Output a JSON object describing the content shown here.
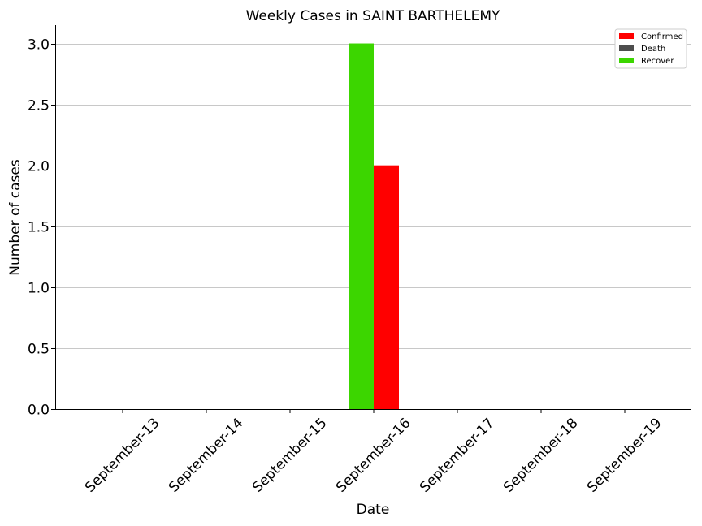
{
  "chart_data": {
    "type": "bar",
    "title": "Weekly Cases in SAINT BARTHELEMY",
    "xlabel": "Date",
    "ylabel": "Number of cases",
    "categories": [
      "September-13",
      "September-14",
      "September-15",
      "September-16",
      "September-17",
      "September-18",
      "September-19"
    ],
    "series": [
      {
        "name": "Confirmed",
        "color": "#ff0000",
        "values": [
          0,
          0,
          0,
          2,
          0,
          0,
          0
        ]
      },
      {
        "name": "Death",
        "color": "#4d4d4d",
        "values": [
          0,
          0,
          0,
          0,
          0,
          0,
          0
        ]
      },
      {
        "name": "Recover",
        "color": "#3cd600",
        "values": [
          0,
          0,
          0,
          3,
          0,
          0,
          0
        ]
      }
    ],
    "bar_order": [
      "Recover",
      "Confirmed",
      "Death"
    ],
    "ylim": [
      0,
      3.15
    ],
    "yticks": [
      "0.0",
      "0.5",
      "1.0",
      "1.5",
      "2.0",
      "2.5",
      "3.0"
    ],
    "ytick_values": [
      0,
      0.5,
      1.0,
      1.5,
      2.0,
      2.5,
      3.0
    ],
    "grid": "horizontal",
    "legend_position": "top-right"
  }
}
